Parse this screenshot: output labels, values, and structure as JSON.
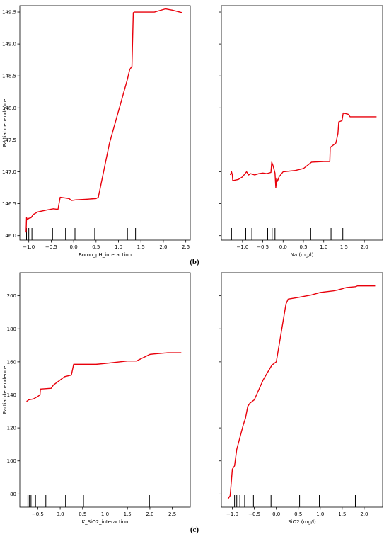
{
  "captions": {
    "b": "(b)",
    "c": "(c)"
  },
  "chart_data": [
    {
      "id": "boron",
      "type": "line",
      "xlabel": "Boron_pH_interaction",
      "ylabel": "Partial dependence",
      "xlim": [
        -1.2,
        2.6
      ],
      "ylim": [
        145.93,
        149.6
      ],
      "xticks": [
        -1.0,
        -0.5,
        0.0,
        0.5,
        1.0,
        1.5,
        2.0,
        2.5
      ],
      "xtick_labels": [
        "−1.0",
        "−0.5",
        "0.0",
        "0.5",
        "1.0",
        "1.5",
        "2.0",
        "2.5"
      ],
      "yticks": [
        146.0,
        146.5,
        147.0,
        147.5,
        148.0,
        148.5,
        149.0,
        149.5
      ],
      "ytick_labels": [
        "146.0",
        "146.5",
        "147.0",
        "147.5",
        "148.0",
        "148.5",
        "149.0",
        "149.5"
      ],
      "line_color": "#e8000b",
      "x": [
        -1.06,
        -1.05,
        -1.03,
        -1.0,
        -0.95,
        -0.9,
        -0.8,
        -0.6,
        -0.45,
        -0.35,
        -0.3,
        -0.2,
        -0.1,
        -0.05,
        0.05,
        0.3,
        0.5,
        0.55,
        0.8,
        1.1,
        1.2,
        1.25,
        1.3,
        1.33,
        1.35,
        1.8,
        2.05,
        2.2,
        2.42
      ],
      "y": [
        146.05,
        146.28,
        146.25,
        146.27,
        146.28,
        146.33,
        146.37,
        146.4,
        146.42,
        146.41,
        146.6,
        146.59,
        146.58,
        146.55,
        146.56,
        146.57,
        146.58,
        146.6,
        147.45,
        148.2,
        148.45,
        148.6,
        148.65,
        149.49,
        149.5,
        149.5,
        149.55,
        149.53,
        149.49
      ],
      "rug": [
        -1.05,
        -1.0,
        -0.93,
        -0.47,
        -0.18,
        0.03,
        0.47,
        1.2,
        1.38
      ]
    },
    {
      "id": "na",
      "type": "line",
      "xlabel": "Na (mg/l)",
      "ylabel": "",
      "xlim": [
        -1.52,
        2.45
      ],
      "ylim": [
        145.93,
        149.6
      ],
      "xticks": [
        -1.0,
        -0.5,
        0.0,
        0.5,
        1.0,
        1.5,
        2.0
      ],
      "xtick_labels": [
        "−1.0",
        "−0.5",
        "0.0",
        "0.5",
        "1.0",
        "1.5",
        "2.0"
      ],
      "yticks": [
        146.0,
        146.5,
        147.0,
        147.5,
        148.0,
        148.5,
        149.0,
        149.5
      ],
      "ytick_labels": [],
      "line_color": "#e8000b",
      "x": [
        -1.3,
        -1.27,
        -1.25,
        -1.24,
        -1.1,
        -1.0,
        -0.9,
        -0.85,
        -0.8,
        -0.7,
        -0.6,
        -0.5,
        -0.4,
        -0.35,
        -0.3,
        -0.28,
        -0.25,
        -0.2,
        -0.18,
        -0.16,
        -0.14,
        -0.1,
        0.0,
        0.3,
        0.5,
        0.7,
        1.0,
        1.15,
        1.16,
        1.3,
        1.35,
        1.37,
        1.45,
        1.48,
        1.6,
        1.65,
        2.3
      ],
      "y": [
        146.95,
        147.0,
        146.95,
        146.86,
        146.88,
        146.92,
        147.0,
        146.95,
        146.97,
        146.95,
        146.97,
        146.98,
        146.97,
        146.98,
        146.99,
        147.15,
        147.1,
        146.98,
        146.75,
        146.9,
        146.85,
        146.92,
        147.0,
        147.02,
        147.05,
        147.15,
        147.16,
        147.16,
        147.38,
        147.45,
        147.6,
        147.78,
        147.8,
        147.92,
        147.9,
        147.86,
        147.86
      ],
      "rug": [
        -1.27,
        -0.92,
        -0.77,
        -0.38,
        -0.27,
        -0.2,
        0.68,
        1.18,
        1.47
      ]
    },
    {
      "id": "k-sio2",
      "type": "line",
      "xlabel": "K_SiO2_interaction",
      "ylabel": "Partial dependence",
      "xlim": [
        -0.9,
        2.9
      ],
      "ylim": [
        72,
        214
      ],
      "xticks": [
        -0.5,
        0.0,
        0.5,
        1.0,
        1.5,
        2.0,
        2.5
      ],
      "xtick_labels": [
        "−0.5",
        "0.0",
        "0.5",
        "1.0",
        "1.5",
        "2.0",
        "2.5"
      ],
      "yticks": [
        80,
        100,
        120,
        140,
        160,
        180,
        200
      ],
      "ytick_labels": [
        "80",
        "100",
        "120",
        "140",
        "160",
        "180",
        "200"
      ],
      "line_color": "#e8000b",
      "x": [
        -0.75,
        -0.7,
        -0.6,
        -0.5,
        -0.45,
        -0.44,
        -0.2,
        -0.15,
        0.1,
        0.25,
        0.3,
        0.8,
        1.0,
        1.5,
        1.7,
        2.0,
        2.1,
        2.4,
        2.7
      ],
      "y": [
        136,
        137,
        137.5,
        139,
        140,
        143.5,
        144,
        146,
        151,
        152,
        158.5,
        158.5,
        159,
        160.5,
        160.5,
        164.5,
        164.8,
        165.5,
        165.5
      ],
      "rug": [
        -0.72,
        -0.69,
        -0.65,
        -0.55,
        -0.32,
        0.12,
        0.52,
        1.99
      ]
    },
    {
      "id": "sio2",
      "type": "line",
      "xlabel": "SiO2 (mg/l)",
      "ylabel": "",
      "xlim": [
        -1.25,
        2.42
      ],
      "ylim": [
        72,
        214
      ],
      "xticks": [
        -1.0,
        -0.5,
        0.0,
        0.5,
        1.0,
        1.5,
        2.0
      ],
      "xtick_labels": [
        "−1.0",
        "−0.5",
        "0.0",
        "0.5",
        "1.0",
        "1.5",
        "2.0"
      ],
      "yticks": [
        80,
        100,
        120,
        140,
        160,
        180,
        200
      ],
      "ytick_labels": [],
      "line_color": "#e8000b",
      "x": [
        -1.1,
        -1.05,
        -1.0,
        -0.95,
        -0.9,
        -0.85,
        -0.75,
        -0.7,
        -0.65,
        -0.6,
        -0.5,
        -0.3,
        -0.1,
        0.0,
        0.22,
        0.27,
        0.5,
        0.8,
        1.0,
        1.3,
        1.4,
        1.6,
        1.8,
        1.85,
        2.25
      ],
      "y": [
        77,
        79,
        95,
        97,
        107,
        112,
        122,
        126,
        133,
        135,
        137,
        149,
        158,
        160,
        195,
        198,
        199,
        200.5,
        202,
        203,
        203.5,
        205,
        205.5,
        206,
        206
      ],
      "rug": [
        -0.95,
        -0.9,
        -0.83,
        -0.72,
        -0.52,
        -0.12,
        0.53,
        0.98,
        1.8
      ]
    }
  ]
}
